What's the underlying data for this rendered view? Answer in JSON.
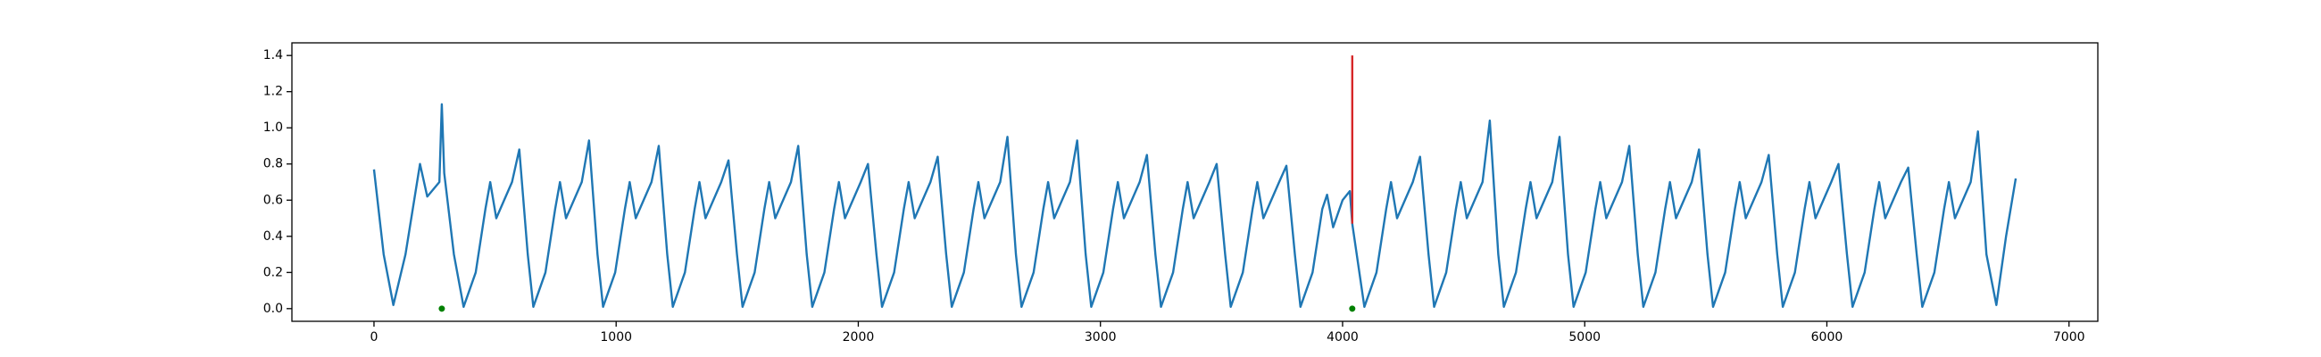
{
  "chart_data": {
    "type": "line",
    "xlim": [
      -339,
      7119
    ],
    "ylim": [
      -0.07,
      1.47
    ],
    "xticks": [
      0,
      1000,
      2000,
      3000,
      4000,
      5000,
      6000,
      7000
    ],
    "yticks": [
      {
        "value": 0.0,
        "label": "0.0"
      },
      0.2,
      0.4,
      0.6,
      0.8,
      {
        "value": 1.0,
        "label": "1.0"
      },
      1.2,
      1.4
    ],
    "series": [
      {
        "type": "line",
        "color": "#1f77b4",
        "x": [
          0,
          40,
          80,
          130,
          190,
          220,
          270,
          280,
          290,
          330,
          370,
          420,
          460,
          480,
          505,
          570,
          600,
          635,
          658,
          708,
          748,
          768,
          793,
          858,
          888,
          923,
          946,
          996,
          1036,
          1056,
          1081,
          1146,
          1176,
          1211,
          1234,
          1284,
          1324,
          1344,
          1369,
          1434,
          1464,
          1499,
          1522,
          1572,
          1612,
          1632,
          1657,
          1722,
          1752,
          1787,
          1810,
          1860,
          1900,
          1920,
          1945,
          2010,
          2040,
          2075,
          2098,
          2148,
          2188,
          2208,
          2233,
          2298,
          2328,
          2363,
          2386,
          2436,
          2476,
          2496,
          2521,
          2586,
          2616,
          2651,
          2674,
          2724,
          2764,
          2784,
          2809,
          2874,
          2904,
          2939,
          2962,
          3012,
          3052,
          3072,
          3097,
          3162,
          3192,
          3227,
          3250,
          3300,
          3340,
          3360,
          3385,
          3450,
          3480,
          3515,
          3538,
          3588,
          3628,
          3648,
          3673,
          3738,
          3768,
          3803,
          3826,
          3876,
          3916,
          3936,
          3961,
          4000,
          4030,
          4040,
          4090,
          4140,
          4180,
          4200,
          4225,
          4290,
          4320,
          4355,
          4378,
          4428,
          4468,
          4488,
          4513,
          4578,
          4608,
          4643,
          4666,
          4716,
          4756,
          4776,
          4801,
          4866,
          4896,
          4931,
          4954,
          5004,
          5044,
          5064,
          5089,
          5154,
          5184,
          5219,
          5242,
          5292,
          5332,
          5352,
          5377,
          5442,
          5472,
          5507,
          5530,
          5580,
          5620,
          5640,
          5665,
          5730,
          5760,
          5795,
          5818,
          5868,
          5908,
          5928,
          5953,
          6018,
          6048,
          6083,
          6106,
          6156,
          6196,
          6216,
          6241,
          6306,
          6336,
          6371,
          6394,
          6444,
          6484,
          6504,
          6529,
          6594,
          6624,
          6659,
          6700,
          6740,
          6780
        ],
        "values": [
          0.77,
          0.3,
          0.02,
          0.3,
          0.8,
          0.62,
          0.7,
          1.13,
          0.75,
          0.3,
          0.01,
          0.2,
          0.55,
          0.7,
          0.5,
          0.7,
          0.88,
          0.3,
          0.01,
          0.2,
          0.55,
          0.7,
          0.5,
          0.7,
          0.93,
          0.3,
          0.01,
          0.2,
          0.55,
          0.7,
          0.5,
          0.7,
          0.9,
          0.3,
          0.01,
          0.2,
          0.55,
          0.7,
          0.5,
          0.7,
          0.82,
          0.3,
          0.01,
          0.2,
          0.55,
          0.7,
          0.5,
          0.7,
          0.9,
          0.3,
          0.01,
          0.2,
          0.55,
          0.7,
          0.5,
          0.7,
          0.8,
          0.3,
          0.01,
          0.2,
          0.55,
          0.7,
          0.5,
          0.7,
          0.84,
          0.3,
          0.01,
          0.2,
          0.55,
          0.7,
          0.5,
          0.7,
          0.95,
          0.3,
          0.01,
          0.2,
          0.55,
          0.7,
          0.5,
          0.7,
          0.93,
          0.3,
          0.01,
          0.2,
          0.55,
          0.7,
          0.5,
          0.7,
          0.85,
          0.3,
          0.01,
          0.2,
          0.55,
          0.7,
          0.5,
          0.7,
          0.8,
          0.3,
          0.01,
          0.2,
          0.55,
          0.7,
          0.5,
          0.7,
          0.79,
          0.3,
          0.01,
          0.2,
          0.55,
          0.63,
          0.45,
          0.6,
          0.65,
          0.47,
          0.01,
          0.2,
          0.55,
          0.7,
          0.5,
          0.7,
          0.84,
          0.3,
          0.01,
          0.2,
          0.55,
          0.7,
          0.5,
          0.7,
          1.04,
          0.3,
          0.01,
          0.2,
          0.55,
          0.7,
          0.5,
          0.7,
          0.95,
          0.3,
          0.01,
          0.2,
          0.55,
          0.7,
          0.5,
          0.7,
          0.9,
          0.3,
          0.01,
          0.2,
          0.55,
          0.7,
          0.5,
          0.7,
          0.88,
          0.3,
          0.01,
          0.2,
          0.55,
          0.7,
          0.5,
          0.7,
          0.85,
          0.3,
          0.01,
          0.2,
          0.55,
          0.7,
          0.5,
          0.7,
          0.8,
          0.3,
          0.01,
          0.2,
          0.55,
          0.7,
          0.5,
          0.7,
          0.78,
          0.3,
          0.01,
          0.2,
          0.55,
          0.7,
          0.5,
          0.7,
          0.98,
          0.3,
          0.02,
          0.4,
          0.72
        ]
      },
      {
        "type": "line",
        "color": "#d62728",
        "x": [
          4040,
          4040
        ],
        "values": [
          0.47,
          1.4
        ]
      },
      {
        "type": "scatter",
        "color": "#008000",
        "x": [
          280,
          4040
        ],
        "values": [
          0,
          0
        ]
      }
    ]
  }
}
